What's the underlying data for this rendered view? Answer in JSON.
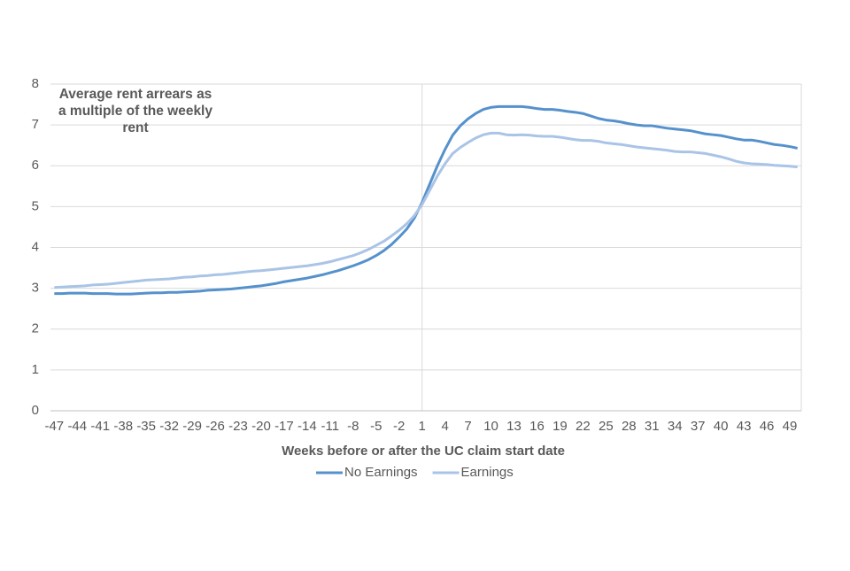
{
  "chart_data": {
    "type": "line",
    "annotation": "Average rent arrears as a multiple of the weekly rent",
    "x_label": "Weeks before or after the UC claim start date",
    "x": [
      -47,
      -46,
      -45,
      -44,
      -43,
      -42,
      -41,
      -40,
      -39,
      -38,
      -37,
      -36,
      -35,
      -34,
      -33,
      -32,
      -31,
      -30,
      -29,
      -28,
      -27,
      -26,
      -25,
      -24,
      -23,
      -22,
      -21,
      -20,
      -19,
      -18,
      -17,
      -16,
      -15,
      -14,
      -13,
      -12,
      -11,
      -10,
      -9,
      -8,
      -7,
      -6,
      -5,
      -4,
      -3,
      -2,
      -1,
      0,
      1,
      2,
      3,
      4,
      5,
      6,
      7,
      8,
      9,
      10,
      11,
      12,
      13,
      14,
      15,
      16,
      17,
      18,
      19,
      20,
      21,
      22,
      23,
      24,
      25,
      26,
      27,
      28,
      29,
      30,
      31,
      32,
      33,
      34,
      35,
      36,
      37,
      38,
      39,
      40,
      41,
      42,
      43,
      44,
      45,
      46,
      47,
      48,
      49,
      50
    ],
    "series": [
      {
        "name": "No Earnings",
        "color": "#5591cc",
        "values": [
          2.87,
          2.87,
          2.88,
          2.88,
          2.88,
          2.87,
          2.87,
          2.87,
          2.86,
          2.86,
          2.86,
          2.87,
          2.88,
          2.89,
          2.89,
          2.9,
          2.9,
          2.91,
          2.92,
          2.93,
          2.95,
          2.96,
          2.97,
          2.98,
          3.0,
          3.02,
          3.04,
          3.06,
          3.09,
          3.12,
          3.16,
          3.19,
          3.22,
          3.25,
          3.29,
          3.33,
          3.38,
          3.43,
          3.49,
          3.55,
          3.62,
          3.7,
          3.8,
          3.92,
          4.07,
          4.25,
          4.45,
          4.72,
          5.1,
          5.55,
          6.0,
          6.4,
          6.75,
          6.98,
          7.15,
          7.28,
          7.38,
          7.43,
          7.45,
          7.45,
          7.45,
          7.45,
          7.43,
          7.4,
          7.38,
          7.38,
          7.36,
          7.33,
          7.31,
          7.28,
          7.22,
          7.16,
          7.12,
          7.1,
          7.07,
          7.03,
          7.0,
          6.98,
          6.98,
          6.95,
          6.92,
          6.9,
          6.88,
          6.86,
          6.82,
          6.78,
          6.76,
          6.74,
          6.7,
          6.66,
          6.63,
          6.63,
          6.6,
          6.56,
          6.52,
          6.5,
          6.47,
          6.43
        ]
      },
      {
        "name": "Earnings",
        "color": "#a9c4e6",
        "values": [
          3.02,
          3.03,
          3.04,
          3.05,
          3.06,
          3.08,
          3.09,
          3.1,
          3.12,
          3.14,
          3.16,
          3.18,
          3.2,
          3.21,
          3.22,
          3.23,
          3.25,
          3.27,
          3.28,
          3.3,
          3.31,
          3.33,
          3.34,
          3.36,
          3.38,
          3.4,
          3.42,
          3.43,
          3.45,
          3.47,
          3.49,
          3.51,
          3.53,
          3.55,
          3.58,
          3.61,
          3.65,
          3.7,
          3.75,
          3.8,
          3.87,
          3.95,
          4.05,
          4.15,
          4.28,
          4.42,
          4.58,
          4.78,
          5.05,
          5.4,
          5.75,
          6.05,
          6.3,
          6.45,
          6.57,
          6.68,
          6.76,
          6.8,
          6.8,
          6.76,
          6.75,
          6.76,
          6.75,
          6.73,
          6.72,
          6.72,
          6.7,
          6.67,
          6.64,
          6.62,
          6.62,
          6.6,
          6.56,
          6.54,
          6.52,
          6.49,
          6.46,
          6.44,
          6.42,
          6.4,
          6.38,
          6.35,
          6.34,
          6.34,
          6.32,
          6.3,
          6.26,
          6.22,
          6.17,
          6.11,
          6.07,
          6.05,
          6.04,
          6.03,
          6.01,
          6.0,
          5.99,
          5.97
        ]
      }
    ],
    "xlim": [
      -47.5,
      50.5
    ],
    "xticks": [
      -47,
      -44,
      -41,
      -38,
      -35,
      -32,
      -29,
      -26,
      -23,
      -20,
      -17,
      -14,
      -11,
      -8,
      -5,
      -2,
      1,
      4,
      7,
      10,
      13,
      16,
      19,
      22,
      25,
      28,
      31,
      34,
      37,
      40,
      43,
      46,
      49
    ],
    "ylim": [
      0,
      8
    ],
    "yticks": [
      0,
      1,
      2,
      3,
      4,
      5,
      6,
      7,
      8
    ],
    "reference_x": 1,
    "grid": true,
    "legend": "bottom"
  }
}
